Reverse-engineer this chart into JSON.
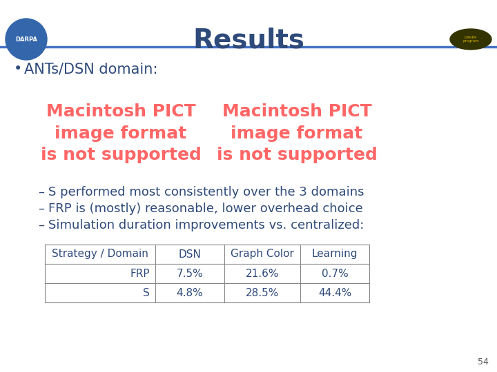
{
  "title": "Results",
  "title_color": "#2E4A7A",
  "title_fontsize": 28,
  "title_fontweight": "bold",
  "background_color": "#FFFFFF",
  "bullet_text": "ANTs/DSN domain:",
  "bullet_color": "#2E4A7A",
  "bullet_fontsize": 15,
  "pict_message": "Macintosh PICT\nimage format\nis not supported",
  "pict_color": "#FF6666",
  "dash_items": [
    "S performed most consistently over the 3 domains",
    "FRP is (mostly) reasonable, lower overhead choice",
    "Simulation duration improvements vs. centralized:"
  ],
  "dash_color": "#2E4A7A",
  "dash_fontsize": 13,
  "table_headers": [
    "Strategy / Domain",
    "DSN",
    "Graph Color",
    "Learning"
  ],
  "table_rows": [
    [
      "FRP",
      "7.5%",
      "21.6%",
      "0.7%"
    ],
    [
      "S",
      "4.8%",
      "28.5%",
      "44.4%"
    ]
  ],
  "table_fontsize": 11,
  "table_text_color": "#2E4A7A",
  "header_line_color": "#4472C4",
  "slide_number": "54",
  "line_color": "#4472C4"
}
